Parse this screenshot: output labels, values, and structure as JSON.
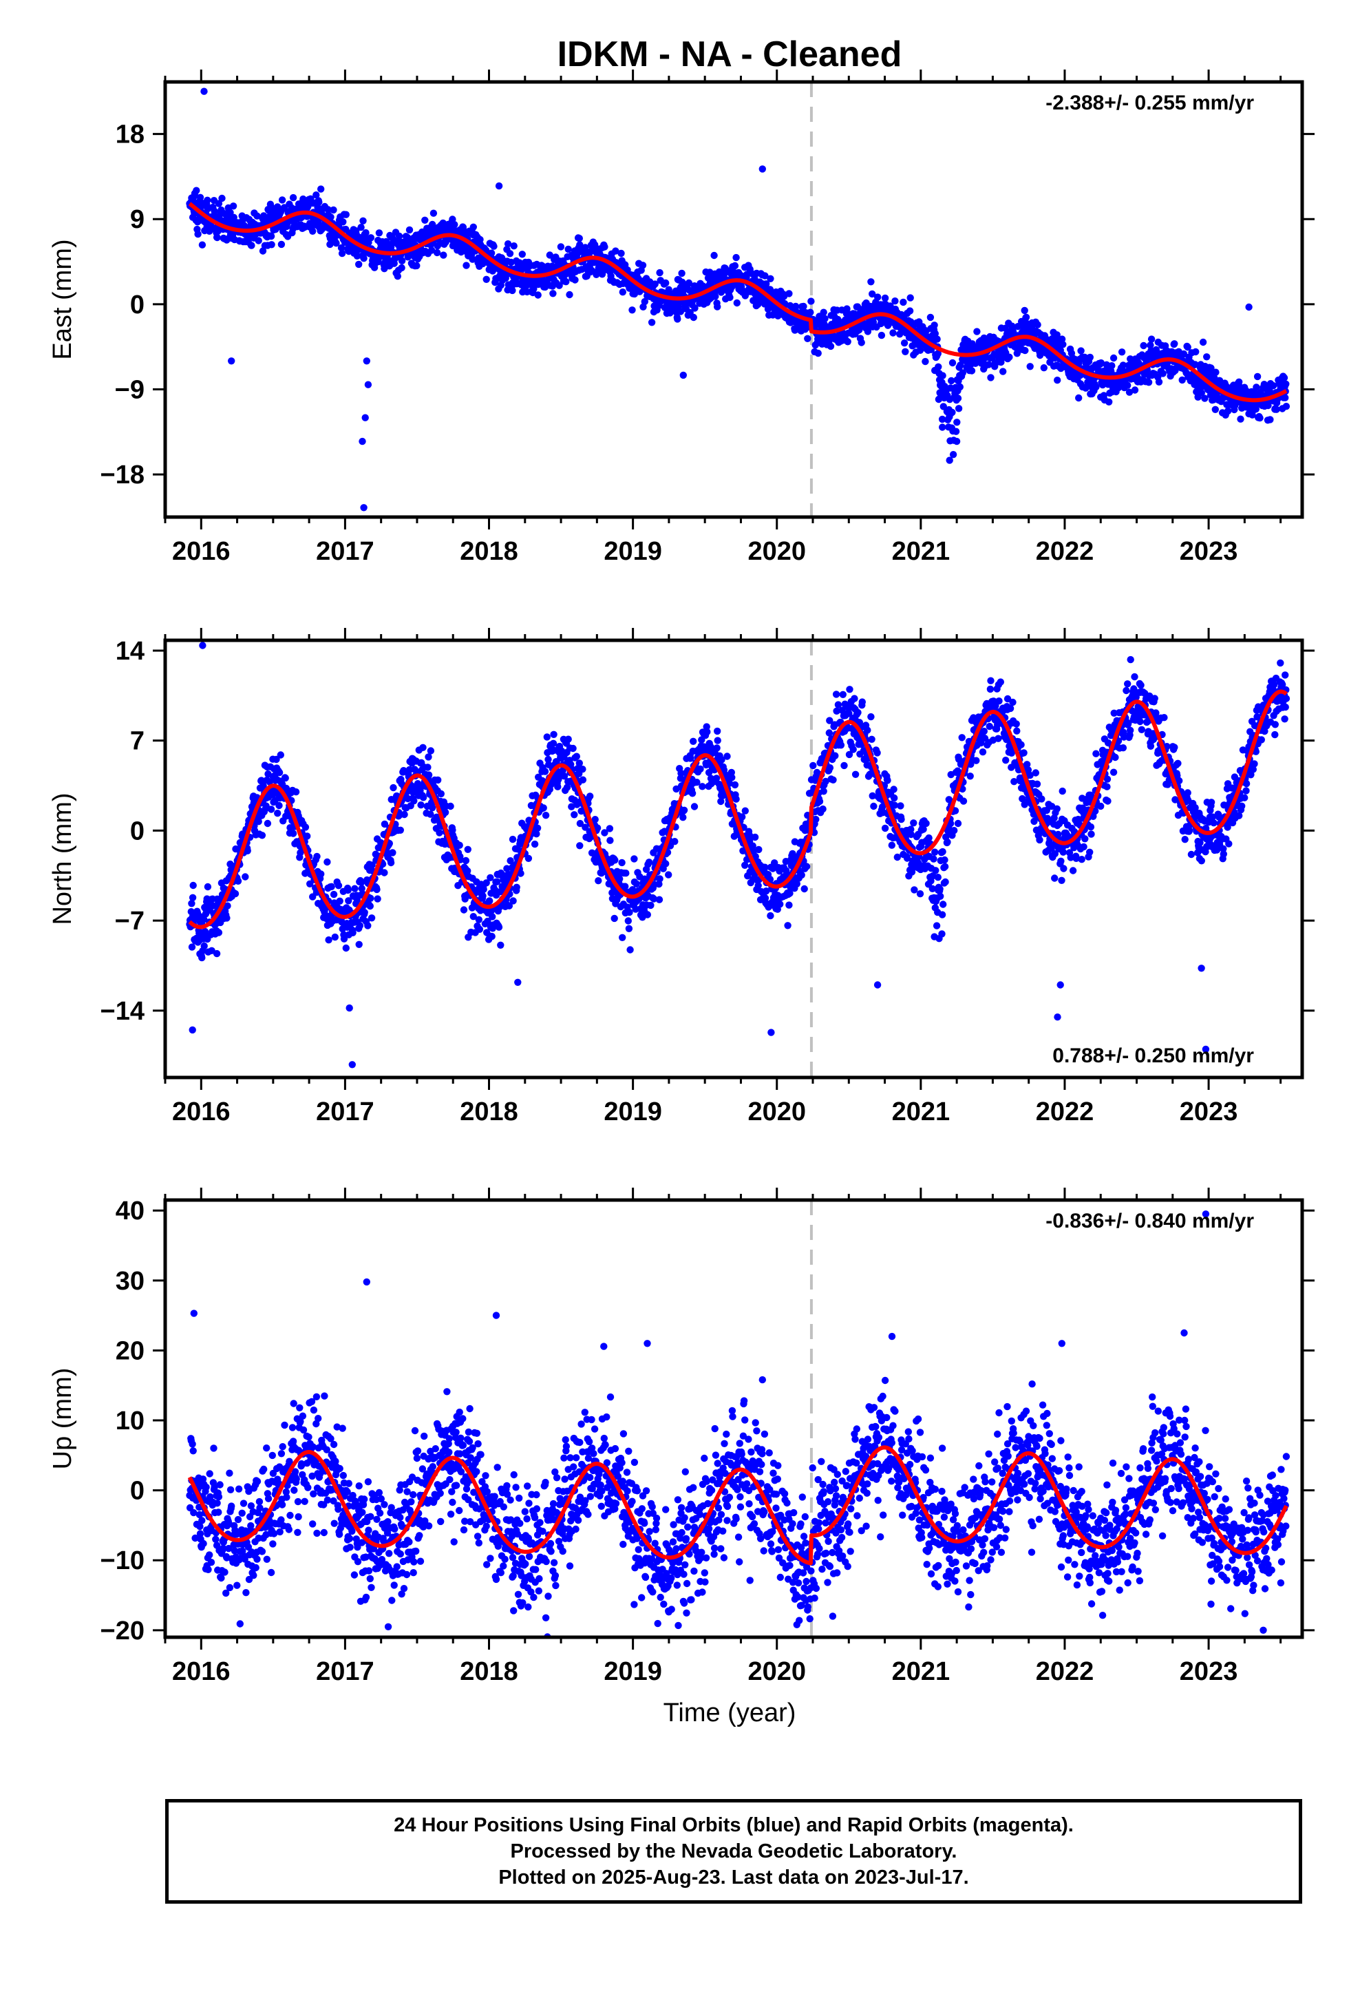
{
  "title": "IDKM  - NA - Cleaned",
  "x_axis_label": "Time (year)",
  "footer": {
    "line1": "24 Hour Positions Using Final Orbits (blue) and Rapid Orbits (magenta).",
    "line2": "Processed by the Nevada Geodetic Laboratory.",
    "line3": "Plotted on 2025-Aug-23. Last data on 2023-Jul-17."
  },
  "colors": {
    "final_orbits": "#0000ff",
    "model_fit": "#ff0000",
    "equipment_change": "#c0c0c0"
  },
  "chart_data": [
    {
      "type": "scatter",
      "panel": "east",
      "ylabel": "East (mm)",
      "rate_label": "-2.388+/- 0.255 mm/yr",
      "rate_position": "top-right",
      "xlim": [
        2015.75,
        2023.65
      ],
      "ylim": [
        -22.5,
        23.5
      ],
      "yticks": [
        -18,
        -9,
        0,
        9,
        18
      ],
      "xticks": [
        2016,
        2017,
        2018,
        2019,
        2020,
        2021,
        2022,
        2023
      ],
      "start": 2015.92,
      "end": 2023.54,
      "model": {
        "intercept": 9.8,
        "rate": -2.388,
        "annual_amp": 1.5,
        "annual_phase_year": 2016.75,
        "semiannual_amp": 0.15
      },
      "offset": {
        "epoch": 2020.24,
        "size": -1.2
      },
      "scatter_std": 1.0,
      "outliers": [
        {
          "x": 2016.02,
          "y": 22.5
        },
        {
          "x": 2016.21,
          "y": -6.0
        },
        {
          "x": 2017.13,
          "y": -21.5
        },
        {
          "x": 2017.12,
          "y": -14.5
        },
        {
          "x": 2017.14,
          "y": -12.0
        },
        {
          "x": 2017.15,
          "y": -6.0
        },
        {
          "x": 2017.16,
          "y": -8.5
        },
        {
          "x": 2018.07,
          "y": 12.5
        },
        {
          "x": 2019.9,
          "y": 14.3
        },
        {
          "x": 2019.35,
          "y": -7.5
        },
        {
          "x": 2021.2,
          "y": -16.5
        },
        {
          "x": 2021.15,
          "y": -13.0
        },
        {
          "x": 2021.25,
          "y": -14.5
        },
        {
          "x": 2023.28,
          "y": -0.3
        }
      ],
      "transients": [
        {
          "start": 2021.1,
          "end": 2021.3,
          "depth": -6.0
        }
      ]
    },
    {
      "type": "scatter",
      "panel": "north",
      "ylabel": "North (mm)",
      "rate_label": "0.788+/- 0.250 mm/yr",
      "rate_position": "bottom-right",
      "xlim": [
        2015.75,
        2023.65
      ],
      "ylim": [
        -19.2,
        14.8
      ],
      "yticks": [
        -14,
        -7,
        0,
        7,
        14
      ],
      "xticks": [
        2016,
        2017,
        2018,
        2019,
        2020,
        2021,
        2022,
        2023
      ],
      "start": 2015.92,
      "end": 2023.54,
      "model": {
        "intercept": -2.6,
        "rate": 0.788,
        "annual_amp": 5.3,
        "annual_phase_year": 2016.5,
        "semiannual_amp": 0.4
      },
      "offset": {
        "epoch": 2020.24,
        "size": 1.8
      },
      "scatter_std": 1.2,
      "outliers": [
        {
          "x": 2016.01,
          "y": 14.4
        },
        {
          "x": 2015.94,
          "y": -15.5
        },
        {
          "x": 2017.05,
          "y": -18.2
        },
        {
          "x": 2017.03,
          "y": -13.8
        },
        {
          "x": 2018.2,
          "y": -11.8
        },
        {
          "x": 2019.96,
          "y": -15.7
        },
        {
          "x": 2020.7,
          "y": -12.0
        },
        {
          "x": 2021.95,
          "y": -14.5
        },
        {
          "x": 2021.97,
          "y": -12.0
        },
        {
          "x": 2022.95,
          "y": -10.7
        },
        {
          "x": 2022.98,
          "y": -17.0
        }
      ],
      "transients": [
        {
          "start": 2021.05,
          "end": 2021.2,
          "depth": -5.0
        }
      ]
    },
    {
      "type": "scatter",
      "panel": "up",
      "ylabel": "Up (mm)",
      "rate_label": "-0.836+/- 0.840 mm/yr",
      "rate_position": "top-right",
      "xlim": [
        2015.75,
        2023.65
      ],
      "ylim": [
        -21,
        41.5
      ],
      "yticks": [
        -20,
        -10,
        0,
        10,
        20,
        30,
        40
      ],
      "xticks": [
        2016,
        2017,
        2018,
        2019,
        2020,
        2021,
        2022,
        2023
      ],
      "start": 2015.92,
      "end": 2023.54,
      "model": {
        "intercept": -1.0,
        "rate": -0.836,
        "annual_amp": 6.5,
        "annual_phase_year": 2016.75,
        "semiannual_amp": 0.6
      },
      "offset": {
        "epoch": 2020.24,
        "size": 4.0
      },
      "scatter_std": 4.2,
      "outliers": [
        {
          "x": 2015.95,
          "y": 25.3
        },
        {
          "x": 2017.15,
          "y": 29.8
        },
        {
          "x": 2018.05,
          "y": 25.0
        },
        {
          "x": 2019.1,
          "y": 21.0
        },
        {
          "x": 2019.9,
          "y": 15.8
        },
        {
          "x": 2020.8,
          "y": 22.0
        },
        {
          "x": 2021.98,
          "y": 21.0
        },
        {
          "x": 2022.83,
          "y": 22.5
        },
        {
          "x": 2022.98,
          "y": 39.5
        },
        {
          "x": 2023.38,
          "y": -20.0
        },
        {
          "x": 2020.22,
          "y": -14.3
        },
        {
          "x": 2017.3,
          "y": -19.5
        }
      ],
      "transients": []
    }
  ]
}
